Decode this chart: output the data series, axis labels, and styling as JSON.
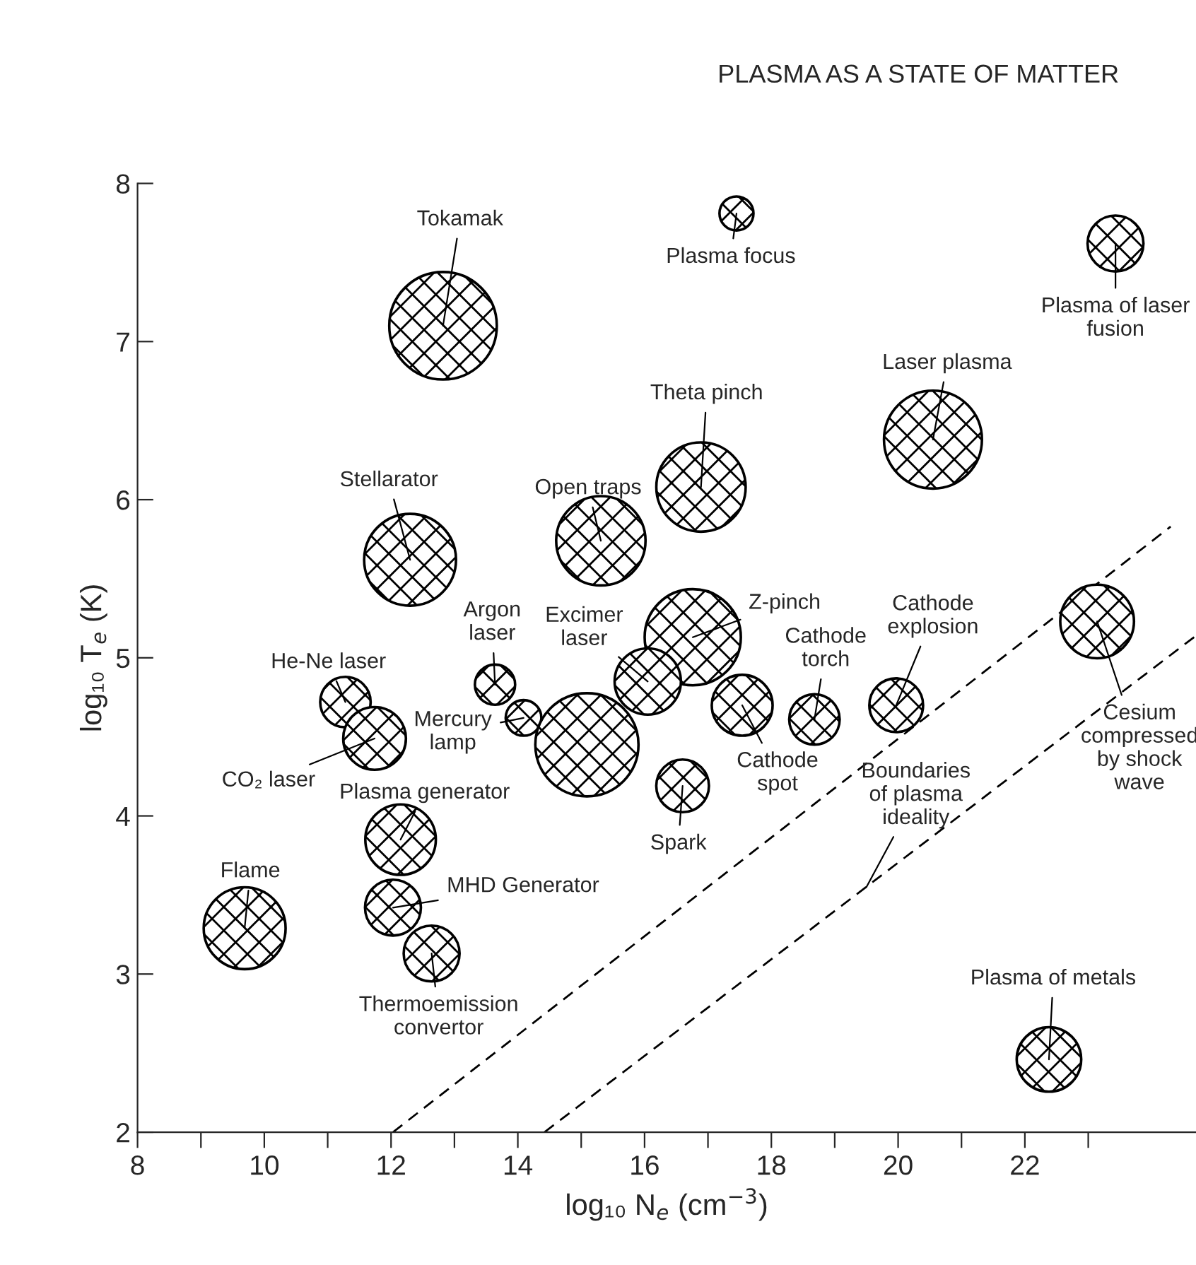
{
  "chart_data": {
    "type": "bubble",
    "xlabel": "log₁₀ N$_{e}$ (cm$^{−3}$)",
    "ylabel": "log₁₀ T$_{e}$ (K)",
    "xlim": [
      8,
      24.7
    ],
    "ylim": [
      2,
      8
    ],
    "xticks": [
      8,
      {
        "value": 9,
        "label": null
      },
      10,
      {
        "value": 11,
        "label": null
      },
      12,
      {
        "value": 13,
        "label": null
      },
      14,
      {
        "value": 15,
        "label": null
      },
      16,
      {
        "value": 17,
        "label": null
      },
      18,
      {
        "value": 19,
        "label": null
      },
      20,
      {
        "value": 21,
        "label": null
      },
      22,
      {
        "value": 23,
        "label": null
      }
    ],
    "yticks": [
      2,
      3,
      4,
      5,
      6,
      7,
      8
    ],
    "grid": false,
    "legend": false,
    "series": [
      {
        "color": "#000000",
        "x": [
          12.82,
          17.45,
          23.43,
          20.55,
          16.89,
          15.31,
          12.3,
          16.76,
          23.14,
          13.64,
          16.05,
          14.09,
          15.09,
          11.28,
          11.74,
          17.54,
          18.68,
          19.97,
          16.6,
          12.15,
          9.69,
          12.03,
          12.64,
          22.38
        ],
        "values": [
          7.1,
          7.81,
          7.62,
          6.38,
          6.08,
          5.74,
          5.62,
          5.13,
          5.23,
          4.83,
          4.85,
          4.62,
          4.45,
          4.72,
          4.49,
          4.7,
          4.61,
          4.7,
          4.19,
          3.85,
          3.29,
          3.42,
          3.13,
          2.46
        ],
        "sizes": [
          1.0,
          0.1,
          0.27,
          0.83,
          0.69,
          0.69,
          0.73,
          0.8,
          0.47,
          0.14,
          0.38,
          0.11,
          0.92,
          0.22,
          0.34,
          0.32,
          0.22,
          0.25,
          0.24,
          0.43,
          0.58,
          0.27,
          0.27,
          0.36
        ]
      },
      {
        "type": "line",
        "color": "#000000",
        "line_style": "dashed",
        "x": [
          12.03,
          24.3
        ],
        "values": [
          2,
          5.83
        ]
      },
      {
        "type": "line",
        "color": "#000000",
        "line_style": "dashed",
        "x": [
          14.42,
          24.7
        ],
        "values": [
          2,
          5.14
        ]
      }
    ],
    "annotations": [
      "PLASMA AS A STATE OF MATTER",
      {
        "text": "Tokamak",
        "x": 12.82,
        "y": 7.1
      },
      {
        "text": "Plasma focus",
        "x": 17.45,
        "y": 7.81
      },
      {
        "text": "Plasma of laser\nfusion",
        "x": 23.43,
        "y": 7.62
      },
      {
        "text": "Laser plasma",
        "x": 20.55,
        "y": 6.38
      },
      {
        "text": "Theta pinch",
        "x": 16.89,
        "y": 6.08
      },
      {
        "text": "Open traps",
        "x": 15.31,
        "y": 5.74
      },
      {
        "text": "Stellarator",
        "x": 12.3,
        "y": 5.62
      },
      {
        "text": "Z-pinch",
        "x": 16.76,
        "y": 5.13
      },
      {
        "text": "Cesium\ncompressed\nby shock\nwave",
        "x": 23.14,
        "y": 5.23
      },
      {
        "text": "Argon\nlaser",
        "x": 13.64,
        "y": 4.83
      },
      {
        "text": "Excimer\nlaser",
        "x": 16.05,
        "y": 4.85
      },
      {
        "text": "Mercury\nlamp",
        "x": 14.09,
        "y": 4.62
      },
      {
        "text": "He-Ne laser",
        "x": 11.28,
        "y": 4.72
      },
      {
        "text": "CO₂ laser",
        "x": 11.74,
        "y": 4.49
      },
      {
        "text": "Cathode\nspot",
        "x": 17.54,
        "y": 4.7
      },
      {
        "text": "Cathode\ntorch",
        "x": 18.68,
        "y": 4.61
      },
      {
        "text": "Cathode\nexplosion",
        "x": 19.97,
        "y": 4.7
      },
      {
        "text": "Spark",
        "x": 16.6,
        "y": 4.19
      },
      {
        "text": "Plasma generator",
        "x": 12.15,
        "y": 3.85
      },
      {
        "text": "Flame",
        "x": 9.69,
        "y": 3.29
      },
      {
        "text": "MHD Generator",
        "x": 12.03,
        "y": 3.42
      },
      {
        "text": "Thermoemission\nconvertor",
        "x": 12.64,
        "y": 3.13
      },
      {
        "text": "Plasma of metals",
        "x": 22.38,
        "y": 2.46
      },
      {
        "text": "Boundaries\nof plasma\nideality",
        "x": 19.5,
        "y": 3.55
      }
    ]
  }
}
